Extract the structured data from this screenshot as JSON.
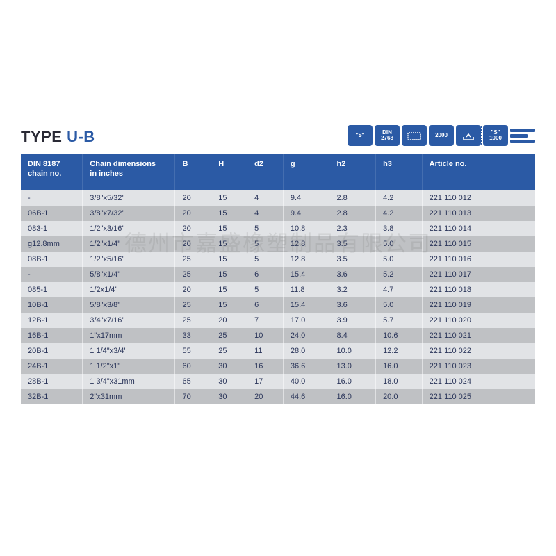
{
  "title": {
    "prefix": "TYPE ",
    "suffix": "U-B"
  },
  "watermark": "德州市嘉盛橡塑制品有限公司",
  "badges": [
    {
      "kind": "text",
      "line1": "\"S\""
    },
    {
      "kind": "text",
      "line1": "DIN",
      "line2": "2768"
    },
    {
      "kind": "icon-rect"
    },
    {
      "kind": "text",
      "line1": "2000"
    },
    {
      "kind": "icon-tray"
    },
    {
      "kind": "text",
      "line1": "\"S\"",
      "line2": "1000",
      "dotted": true
    },
    {
      "kind": "flat-bars"
    }
  ],
  "columns": [
    "DIN 8187\nchain no.",
    "Chain dimensions\nin inches",
    "B",
    "H",
    "d2",
    "g",
    "h2",
    "h3",
    "Article no."
  ],
  "rows": [
    [
      "-",
      "3/8\"x5/32\"",
      "20",
      "15",
      "4",
      "9.4",
      "2.8",
      "4.2",
      "221 110 012"
    ],
    [
      "06B-1",
      "3/8\"x7/32\"",
      "20",
      "15",
      "4",
      "9.4",
      "2.8",
      "4.2",
      "221 110 013"
    ],
    [
      "083-1",
      "1/2\"x3/16\"",
      "20",
      "15",
      "5",
      "10.8",
      "2.3",
      "3.8",
      "221 110 014"
    ],
    [
      "g12.8mm",
      "1/2\"x1/4\"",
      "20",
      "15",
      "5",
      "12.8",
      "3.5",
      "5.0",
      "221 110 015"
    ],
    [
      "08B-1",
      "1/2\"x5/16\"",
      "25",
      "15",
      "5",
      "12.8",
      "3.5",
      "5.0",
      "221 110 016"
    ],
    [
      "-",
      "5/8\"x1/4\"",
      "25",
      "15",
      "6",
      "15.4",
      "3.6",
      "5.2",
      "221 110 017"
    ],
    [
      "085-1",
      "1/2x1/4\"",
      "20",
      "15",
      "5",
      "11.8",
      "3.2",
      "4.7",
      "221 110 018"
    ],
    [
      "10B-1",
      "5/8\"x3/8\"",
      "25",
      "15",
      "6",
      "15.4",
      "3.6",
      "5.0",
      "221 110 019"
    ],
    [
      "12B-1",
      "3/4\"x7/16\"",
      "25",
      "20",
      "7",
      "17.0",
      "3.9",
      "5.7",
      "221 110 020"
    ],
    [
      "16B-1",
      "1\"x17mm",
      "33",
      "25",
      "10",
      "24.0",
      "8.4",
      "10.6",
      "221 110 021"
    ],
    [
      "20B-1",
      "1 1/4\"x3/4\"",
      "55",
      "25",
      "11",
      "28.0",
      "10.0",
      "12.2",
      "221 110 022"
    ],
    [
      "24B-1",
      "1 1/2\"x1\"",
      "60",
      "30",
      "16",
      "36.6",
      "13.0",
      "16.0",
      "221 110 023"
    ],
    [
      "28B-1",
      "1 3/4\"x31mm",
      "65",
      "30",
      "17",
      "40.0",
      "16.0",
      "18.0",
      "221 110 024"
    ],
    [
      "32B-1",
      "2\"x31mm",
      "70",
      "30",
      "20",
      "44.6",
      "16.0",
      "20.0",
      "221 110 025"
    ]
  ],
  "colors": {
    "header_bg": "#2b5aa5",
    "row_odd": "#e1e3e6",
    "row_even": "#bfc1c4",
    "cell_text": "#2a355a"
  }
}
